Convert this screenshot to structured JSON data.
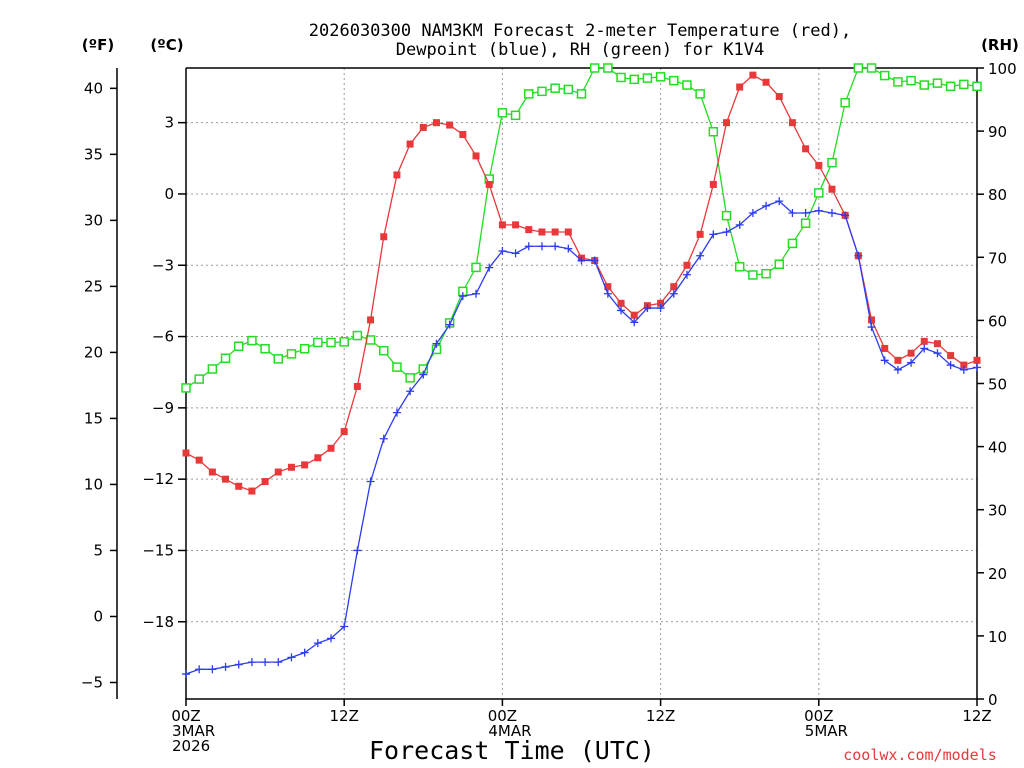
{
  "chart_data": {
    "type": "line",
    "title_line1": "2026030300 NAM3KM Forecast 2-meter Temperature (red),",
    "title_line2": "Dewpoint (blue), RH (green) for K1V4",
    "xlabel": "Forecast Time (UTC)",
    "credit": "coolwx.com/models",
    "units": {
      "fahrenheit": "(ºF)",
      "celsius": "(ºC)",
      "rh": "(RH)"
    },
    "x_hours_range": [
      0,
      60
    ],
    "x_ticks": [
      {
        "hour": 0,
        "lines": [
          "00Z",
          "3MAR",
          "2026"
        ]
      },
      {
        "hour": 12,
        "lines": [
          "12Z"
        ]
      },
      {
        "hour": 24,
        "lines": [
          "00Z",
          "4MAR"
        ]
      },
      {
        "hour": 36,
        "lines": [
          "12Z"
        ]
      },
      {
        "hour": 48,
        "lines": [
          "00Z",
          "5MAR"
        ]
      },
      {
        "hour": 60,
        "lines": [
          "12Z"
        ]
      }
    ],
    "y_celsius_range": [
      -21.25,
      5.3
    ],
    "fahrenheit_ticks": [
      "−5",
      "0",
      "5",
      "10",
      "15",
      "20",
      "25",
      "30",
      "35",
      "40"
    ],
    "celsius_ticks": [
      "−18",
      "−15",
      "−12",
      "−9",
      "−6",
      "−3",
      "0",
      "3"
    ],
    "rh_range": [
      0,
      100
    ],
    "rh_ticks": [
      "0",
      "10",
      "20",
      "30",
      "40",
      "50",
      "60",
      "70",
      "80",
      "90",
      "100"
    ],
    "series": [
      {
        "name": "2-meter Temperature (°C)",
        "color": "#e8383a",
        "marker": "filled-square",
        "axis": "temperature",
        "values": [
          -10.9,
          -11.2,
          -11.7,
          -12.0,
          -12.3,
          -12.5,
          -12.1,
          -11.7,
          -11.5,
          -11.4,
          -11.1,
          -10.7,
          -10.0,
          -8.1,
          -5.3,
          -1.8,
          0.8,
          2.1,
          2.8,
          3.0,
          2.9,
          2.5,
          1.6,
          0.4,
          -1.3,
          -1.3,
          -1.5,
          -1.6,
          -1.6,
          -1.6,
          -2.7,
          -2.8,
          -3.9,
          -4.6,
          -5.1,
          -4.7,
          -4.6,
          -3.9,
          -3.0,
          -1.7,
          0.4,
          3.0,
          4.5,
          5.0,
          4.7,
          4.1,
          3.0,
          1.9,
          1.2,
          0.2,
          -0.9,
          -2.6,
          -5.3,
          -6.5,
          -7.0,
          -6.7,
          -6.2,
          -6.3,
          -6.8,
          -7.2,
          -7.0
        ],
        "missing_after_hour": 60
      },
      {
        "name": "Dewpoint (°C)",
        "color": "#2d3cf0",
        "marker": "plus",
        "axis": "temperature",
        "values": [
          -20.2,
          -20.0,
          -20.0,
          -19.9,
          -19.8,
          -19.7,
          -19.7,
          -19.7,
          -19.5,
          -19.3,
          -18.9,
          -18.7,
          -18.2,
          -15.0,
          -12.1,
          -10.3,
          -9.2,
          -8.3,
          -7.6,
          -6.3,
          -5.5,
          -4.3,
          -4.2,
          -3.1,
          -2.4,
          -2.5,
          -2.2,
          -2.2,
          -2.2,
          -2.3,
          -2.8,
          -2.8,
          -4.2,
          -4.9,
          -5.4,
          -4.8,
          -4.8,
          -4.2,
          -3.4,
          -2.6,
          -1.7,
          -1.6,
          -1.3,
          -0.8,
          -0.5,
          -0.3,
          -0.8,
          -0.8,
          -0.7,
          -0.8,
          -0.9,
          -2.6,
          -5.6,
          -7.0,
          -7.4,
          -7.1,
          -6.5,
          -6.7,
          -7.2,
          -7.4,
          -7.3
        ]
      },
      {
        "name": "Relative Humidity (%)",
        "color": "#22dd22",
        "marker": "open-square",
        "axis": "rh",
        "values": [
          49.3,
          50.7,
          52.3,
          54.0,
          55.9,
          56.8,
          55.5,
          53.9,
          54.7,
          55.5,
          56.5,
          56.5,
          56.6,
          57.6,
          56.9,
          55.2,
          52.6,
          50.9,
          52.3,
          55.4,
          59.6,
          64.6,
          68.4,
          82.4,
          92.9,
          92.5,
          95.9,
          96.3,
          96.8,
          96.6,
          95.9,
          100.0,
          100.0,
          98.5,
          98.2,
          98.4,
          98.6,
          98.0,
          97.3,
          95.9,
          89.9,
          76.6,
          68.5,
          67.2,
          67.4,
          68.9,
          72.2,
          75.4,
          80.2,
          85.0,
          94.5,
          100.0,
          100.0,
          98.8,
          97.8,
          98.0,
          97.3,
          97.6,
          97.1,
          97.4,
          97.1
        ]
      }
    ]
  }
}
